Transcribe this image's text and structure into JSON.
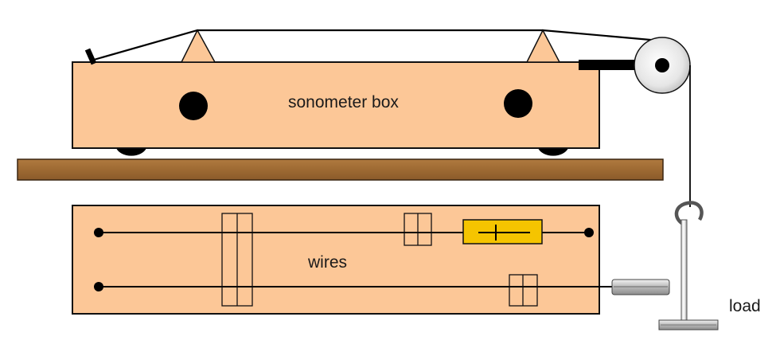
{
  "labels": {
    "box": "sonometer box",
    "wires": "wires",
    "load": "load"
  },
  "colors": {
    "box_fill": "#FCC797",
    "board_fill": "#A6713A",
    "wire": "#000000",
    "yellow_box": "#F5C400",
    "pulley_fill": "#E8E8E8",
    "outline": "#111111"
  }
}
